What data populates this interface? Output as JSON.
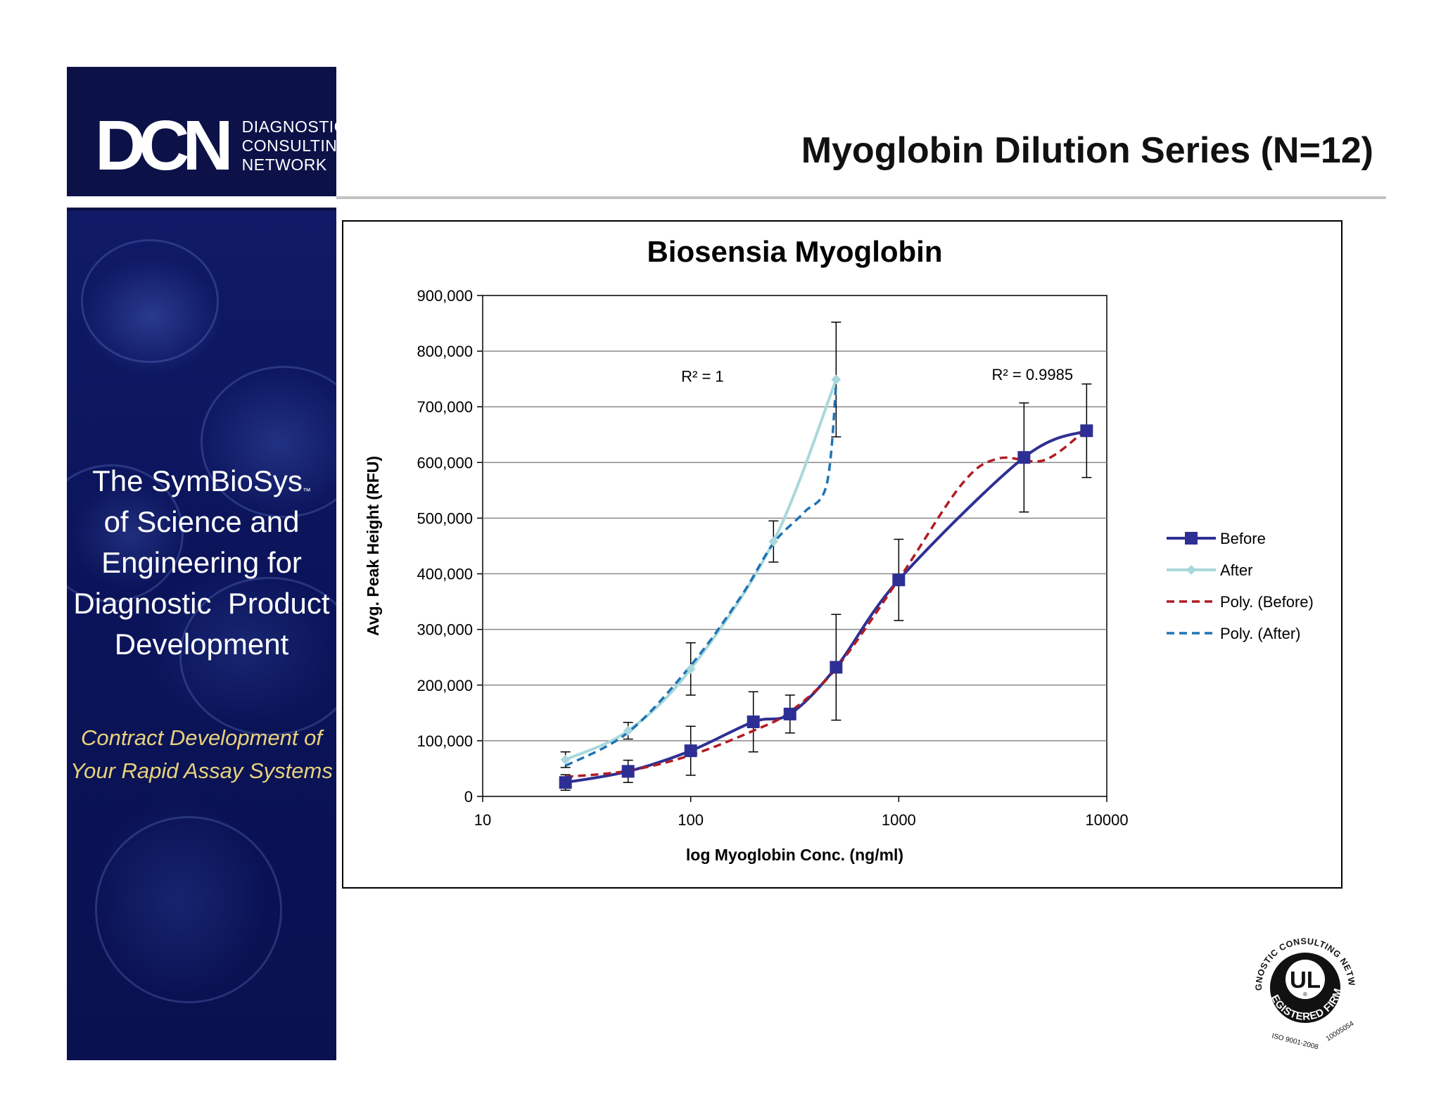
{
  "sidebar": {
    "logo_mark": "DCN",
    "logo_words": [
      "DIAGNOSTIC",
      "CONSULTING",
      "NETWORK"
    ],
    "tagline_brand": "The SymBioSys",
    "tagline_tm": "™",
    "tagline_lines": [
      "of Science and",
      "Engineering for",
      "Diagnostic  Product",
      "Development"
    ],
    "subline_lines": [
      "Contract Development of",
      "Your Rapid Assay Systems"
    ]
  },
  "header": {
    "title": "Myoglobin Dilution Series (N=12)"
  },
  "chart_data": {
    "type": "line",
    "title": "Biosensia Myoglobin",
    "xlabel": "log Myoglobin Conc. (ng/ml)",
    "ylabel": "Avg. Peak Height (RFU)",
    "x_scale": "log",
    "xlim": [
      10,
      10000
    ],
    "ylim": [
      0,
      900000
    ],
    "x_ticks": [
      "10",
      "100",
      "1000",
      "10000"
    ],
    "y_ticks": [
      "0",
      "100,000",
      "200,000",
      "300,000",
      "400,000",
      "500,000",
      "600,000",
      "700,000",
      "800,000",
      "900,000"
    ],
    "grid": "horizontal",
    "legend": "right",
    "series": [
      {
        "name": "Before",
        "color": "#2e2f94",
        "marker": "square",
        "style": "solid",
        "points": [
          {
            "x": 25,
            "y": 25000,
            "err": 14000
          },
          {
            "x": 50,
            "y": 45000,
            "err": 20000
          },
          {
            "x": 100,
            "y": 82000,
            "err": 44000
          },
          {
            "x": 200,
            "y": 134000,
            "err": 54000
          },
          {
            "x": 300,
            "y": 148000,
            "err": 34000
          },
          {
            "x": 500,
            "y": 232000,
            "err": 95000
          },
          {
            "x": 1000,
            "y": 389000,
            "err": 73000
          },
          {
            "x": 4000,
            "y": 609000,
            "err": 98000
          },
          {
            "x": 8000,
            "y": 657000,
            "err": 84000
          }
        ]
      },
      {
        "name": "After",
        "color": "#a8d8dc",
        "marker": "diamond",
        "style": "solid",
        "points": [
          {
            "x": 25,
            "y": 66000,
            "err": 14000
          },
          {
            "x": 50,
            "y": 118000,
            "err": 15000
          },
          {
            "x": 100,
            "y": 229000,
            "err": 47000
          },
          {
            "x": 250,
            "y": 458000,
            "err": 37000
          },
          {
            "x": 500,
            "y": 749000,
            "err": 103000
          }
        ]
      },
      {
        "name": "Poly. (Before)",
        "color": "#b01c22",
        "style": "dashed",
        "points": [
          {
            "x": 25,
            "y": 35000
          },
          {
            "x": 50,
            "y": 46000
          },
          {
            "x": 100,
            "y": 74000
          },
          {
            "x": 200,
            "y": 118000
          },
          {
            "x": 300,
            "y": 152000
          },
          {
            "x": 500,
            "y": 230000
          },
          {
            "x": 1000,
            "y": 390000
          },
          {
            "x": 2000,
            "y": 560000
          },
          {
            "x": 3000,
            "y": 607000
          },
          {
            "x": 5000,
            "y": 604000
          },
          {
            "x": 8000,
            "y": 660000
          }
        ]
      },
      {
        "name": "Poly. (After)",
        "color": "#1f74b4",
        "style": "dashed",
        "points": [
          {
            "x": 25,
            "y": 55000
          },
          {
            "x": 50,
            "y": 115000
          },
          {
            "x": 100,
            "y": 235000
          },
          {
            "x": 175,
            "y": 360000
          },
          {
            "x": 250,
            "y": 455000
          },
          {
            "x": 350,
            "y": 510000
          },
          {
            "x": 450,
            "y": 560000
          },
          {
            "x": 500,
            "y": 740000
          }
        ]
      }
    ],
    "annotations": [
      {
        "text": "R² = 1",
        "x": 90,
        "y": 745000
      },
      {
        "text": "R² = 0.9985",
        "x": 2800,
        "y": 748000
      }
    ]
  },
  "badge": {
    "ring_top": "DIAGNOSTIC CONSULTING NETWORK",
    "mark": "UL",
    "registered": "®",
    "ring_bottom": "REGISTERED FIRM",
    "iso": "ISO 9001-2008",
    "number": "10005054",
    "color": "#111111"
  }
}
